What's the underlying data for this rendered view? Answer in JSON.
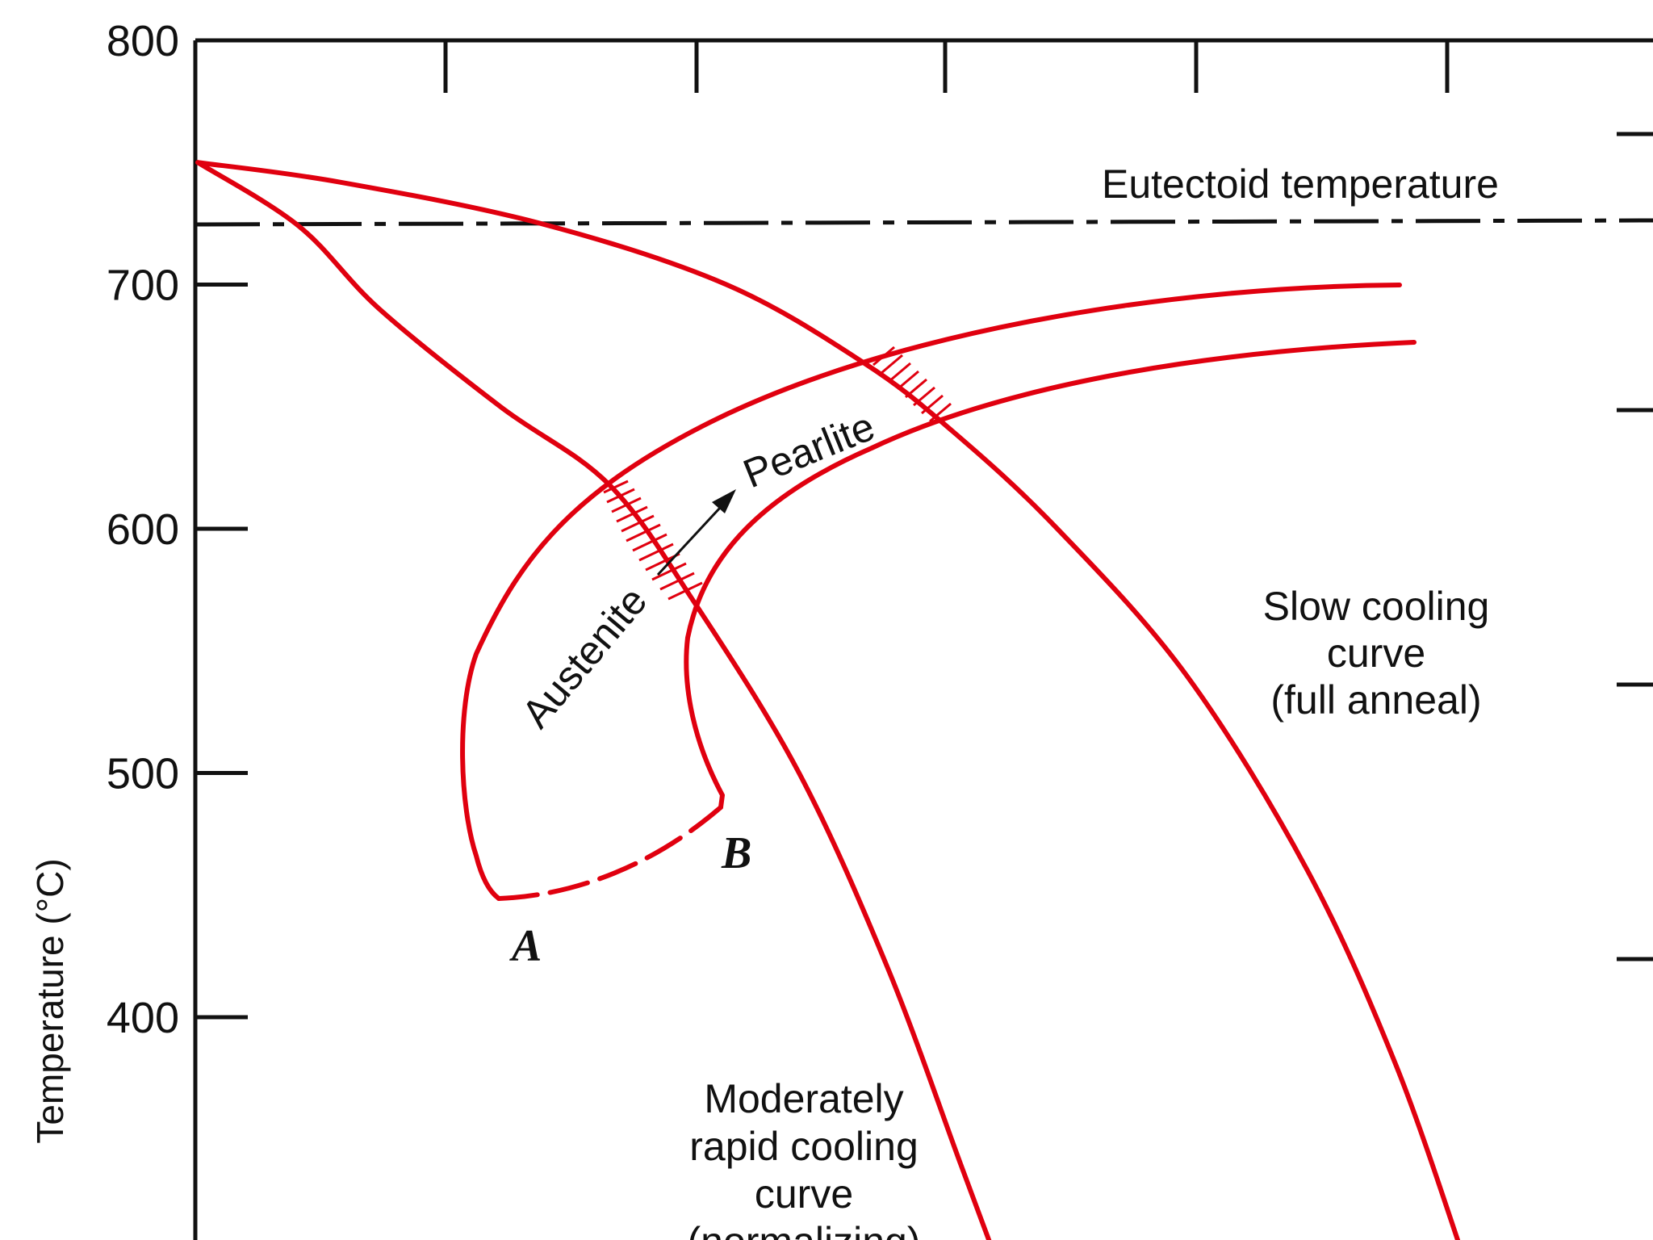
{
  "chart_data": {
    "type": "line",
    "title": "",
    "xlabel": "",
    "ylabel": "Temperature (°C)",
    "ylim": [
      300,
      800
    ],
    "yticks": [
      400,
      500,
      600,
      700,
      800
    ],
    "grid": false,
    "colors": {
      "curve": "#e0000f",
      "axis": "#111111"
    },
    "series": [
      {
        "name": "Slow cooling curve (full anneal)",
        "temperature": [
          750,
          742,
          725,
          700,
          668,
          640,
          600,
          540,
          460,
          380,
          300
        ]
      },
      {
        "name": "Moderately rapid cooling curve (normalizing)",
        "temperature": [
          750,
          724,
          690,
          650,
          618,
          570,
          500,
          420,
          340,
          300
        ]
      }
    ],
    "eutectoid_temperature": 723,
    "annotations": {
      "eutectoid": "Eutectoid temperature",
      "slow_line1": "Slow cooling",
      "slow_line2": "curve",
      "slow_line3": "(full anneal)",
      "rapid_line1": "Moderately",
      "rapid_line2": "rapid cooling",
      "rapid_line3": "curve",
      "rapid_line4": "(normalizing)",
      "austenite": "Austenite",
      "pearlite": "Pearlite",
      "point_a": "A",
      "point_b": "B"
    },
    "point_a_temperature": 450,
    "point_b_temperature": 485
  }
}
